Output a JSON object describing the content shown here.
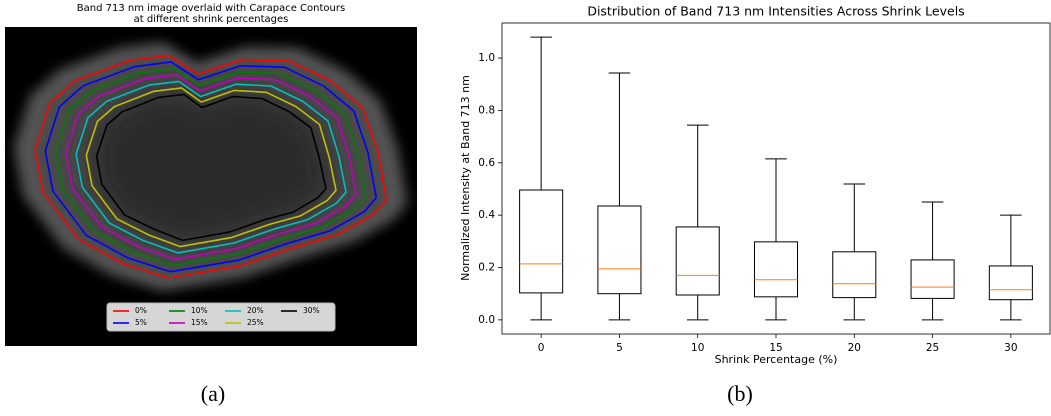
{
  "chart_data": [
    {
      "type": "contour-image",
      "title": [
        "Band 713 nm image overlaid with Carapace Contours",
        "at different shrink percentages"
      ],
      "series": [
        {
          "name": "0%",
          "color": "#ff0000"
        },
        {
          "name": "5%",
          "color": "#0000ff"
        },
        {
          "name": "10%",
          "color": "#008000"
        },
        {
          "name": "15%",
          "color": "#bf00bf"
        },
        {
          "name": "20%",
          "color": "#00bfbf"
        },
        {
          "name": "25%",
          "color": "#bfbf00"
        },
        {
          "name": "30%",
          "color": "#000000"
        }
      ],
      "caption": "(a)"
    },
    {
      "type": "box",
      "title": "Distribution of Band 713 nm Intensities Across Shrink Levels",
      "x_label": "Shrink Percentage (%)",
      "y_label": "Normalized Intensity at Band 713 nm",
      "categories": [
        "0",
        "5",
        "10",
        "15",
        "20",
        "25",
        "30"
      ],
      "whisker_low": [
        0,
        0,
        0,
        0,
        0,
        0,
        0
      ],
      "q1": [
        0.103,
        0.1,
        0.095,
        0.088,
        0.085,
        0.082,
        0.077
      ],
      "median": [
        0.214,
        0.195,
        0.17,
        0.153,
        0.138,
        0.125,
        0.115
      ],
      "q3": [
        0.496,
        0.435,
        0.355,
        0.298,
        0.26,
        0.229,
        0.206
      ],
      "whisker_high": [
        1.08,
        0.943,
        0.744,
        0.615,
        0.519,
        0.45,
        0.4
      ],
      "color": "#000000",
      "median_color": "#ff7f0e",
      "ylim": [
        -0.054,
        1.134
      ],
      "yticks": [
        {
          "value": 0,
          "label": "0.0"
        },
        0.2,
        0.4,
        0.6,
        0.8,
        {
          "value": 1,
          "label": "1.0"
        }
      ],
      "grid": false,
      "caption": "(b)"
    }
  ]
}
